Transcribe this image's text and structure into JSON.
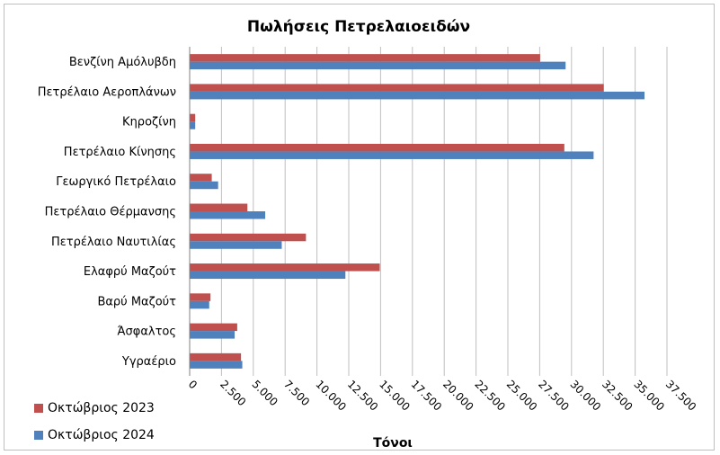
{
  "chart_data": {
    "type": "bar",
    "orientation": "horizontal",
    "title": "Πωλήσεις Πετρελαιοειδών",
    "xlabel": "Τόνοι",
    "ylabel": "",
    "categories": [
      "Βενζίνη Αμόλυβδη",
      "Πετρέλαιο Αεροπλάνων",
      "Κηροζίνη",
      "Πετρέλαιο Κίνησης",
      "Γεωργικό Πετρέλαιο",
      "Πετρέλαιο Θέρμανσης",
      "Πετρέλαιο Ναυτιλίας",
      "Ελαφρύ Μαζούτ",
      "Βαρύ Μαζούτ",
      "Άσφαλτος",
      "Υγραέριο"
    ],
    "series": [
      {
        "name": "Οκτώβριος 2023",
        "color": "#c0504d",
        "values": [
          27500,
          32500,
          400,
          29400,
          1700,
          4500,
          9100,
          14900,
          1600,
          3700,
          4000
        ]
      },
      {
        "name": "Οκτώβριος 2024",
        "color": "#4f81bd",
        "values": [
          29500,
          35700,
          400,
          31700,
          2200,
          5900,
          7200,
          12200,
          1500,
          3500,
          4100
        ]
      }
    ],
    "xlim": [
      0,
      37500
    ],
    "x_ticks": [
      "0",
      "2.500",
      "5.000",
      "7.500",
      "10.000",
      "12.500",
      "15.000",
      "17.500",
      "20.000",
      "22.500",
      "25.000",
      "27.500",
      "30.000",
      "32.500",
      "35.000",
      "37.500"
    ],
    "tick_values": [
      0,
      2500,
      5000,
      7500,
      10000,
      12500,
      15000,
      17500,
      20000,
      22500,
      25000,
      27500,
      30000,
      32500,
      35000,
      37500
    ],
    "grid": true,
    "legend_position": "bottom-left"
  }
}
